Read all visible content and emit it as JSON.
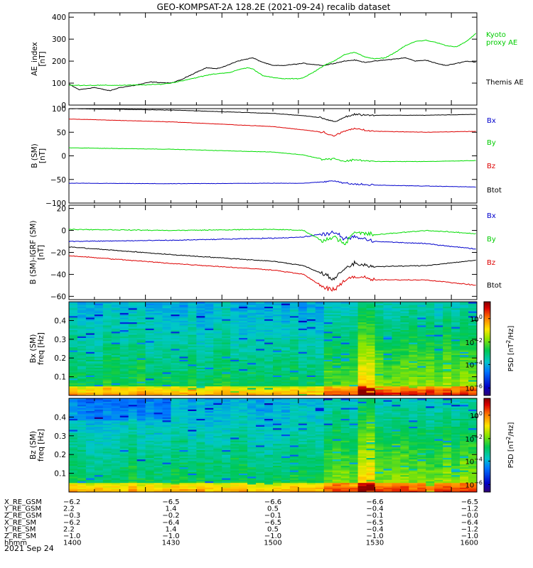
{
  "title": "GEO-KOMPSAT-2A 128.2E (2021-09-24) recalib dataset",
  "footer_date": "2021 Sep 24",
  "chart_data": [
    {
      "id": "ae",
      "type": "line",
      "ylabel": [
        "AE_index",
        "[nT]"
      ],
      "ylim": [
        0,
        420
      ],
      "yticks": [
        0,
        100,
        200,
        300,
        400
      ],
      "series": [
        {
          "name": "Themis AE",
          "color": "#000000",
          "points": [
            [
              0,
              95
            ],
            [
              4,
              70
            ],
            [
              10,
              80
            ],
            [
              16,
              65
            ],
            [
              20,
              80
            ],
            [
              26,
              90
            ],
            [
              32,
              105
            ],
            [
              40,
              100
            ],
            [
              44,
              115
            ],
            [
              50,
              150
            ],
            [
              54,
              170
            ],
            [
              58,
              165
            ],
            [
              62,
              180
            ],
            [
              66,
              200
            ],
            [
              70,
              210
            ],
            [
              72,
              215
            ],
            [
              76,
              195
            ],
            [
              80,
              180
            ],
            [
              84,
              180
            ],
            [
              88,
              185
            ],
            [
              92,
              190
            ],
            [
              96,
              185
            ],
            [
              100,
              180
            ],
            [
              104,
              190
            ],
            [
              108,
              200
            ],
            [
              112,
              205
            ],
            [
              116,
              195
            ],
            [
              120,
              200
            ],
            [
              124,
              205
            ],
            [
              128,
              210
            ],
            [
              132,
              215
            ],
            [
              136,
              200
            ],
            [
              140,
              205
            ],
            [
              144,
              190
            ],
            [
              148,
              180
            ],
            [
              152,
              190
            ],
            [
              156,
              200
            ],
            [
              160,
              195
            ]
          ]
        },
        {
          "name": "Kyoto proxy AE",
          "color": "#00dd00",
          "points": [
            [
              0,
              90
            ],
            [
              10,
              90
            ],
            [
              20,
              90
            ],
            [
              30,
              92
            ],
            [
              36,
              95
            ],
            [
              40,
              100
            ],
            [
              44,
              110
            ],
            [
              48,
              120
            ],
            [
              52,
              130
            ],
            [
              56,
              140
            ],
            [
              60,
              145
            ],
            [
              64,
              150
            ],
            [
              66,
              160
            ],
            [
              70,
              170
            ],
            [
              72,
              165
            ],
            [
              76,
              135
            ],
            [
              80,
              125
            ],
            [
              84,
              120
            ],
            [
              88,
              120
            ],
            [
              90,
              120
            ],
            [
              92,
              125
            ],
            [
              96,
              150
            ],
            [
              100,
              180
            ],
            [
              104,
              200
            ],
            [
              108,
              230
            ],
            [
              112,
              240
            ],
            [
              116,
              220
            ],
            [
              120,
              210
            ],
            [
              124,
              215
            ],
            [
              128,
              240
            ],
            [
              132,
              270
            ],
            [
              136,
              290
            ],
            [
              140,
              295
            ],
            [
              144,
              285
            ],
            [
              148,
              270
            ],
            [
              152,
              265
            ],
            [
              156,
              290
            ],
            [
              160,
              330
            ]
          ]
        }
      ],
      "legend": [
        "Kyoto",
        "proxy AE",
        "Themis AE"
      ]
    },
    {
      "id": "bsm",
      "type": "line",
      "ylabel": [
        "B (SM)",
        "[nT]"
      ],
      "ylim": [
        -100,
        100
      ],
      "yticks": [
        -100,
        -50,
        0,
        50,
        100
      ],
      "series": [
        {
          "name": "Bx",
          "color": "#0000cc",
          "points": [
            [
              0,
              -58
            ],
            [
              40,
              -59
            ],
            [
              80,
              -58
            ],
            [
              92,
              -58
            ],
            [
              100,
              -55
            ],
            [
              104,
              -52
            ],
            [
              108,
              -58
            ],
            [
              112,
              -60
            ],
            [
              120,
              -62
            ],
            [
              140,
              -64
            ],
            [
              160,
              -66
            ]
          ]
        },
        {
          "name": "By",
          "color": "#00dd00",
          "points": [
            [
              0,
              17
            ],
            [
              40,
              14
            ],
            [
              80,
              8
            ],
            [
              92,
              2
            ],
            [
              100,
              -8
            ],
            [
              104,
              -5
            ],
            [
              108,
              -12
            ],
            [
              112,
              -8
            ],
            [
              120,
              -12
            ],
            [
              140,
              -12
            ],
            [
              160,
              -10
            ]
          ]
        },
        {
          "name": "Bz",
          "color": "#dd0000",
          "points": [
            [
              0,
              78
            ],
            [
              40,
              72
            ],
            [
              80,
              62
            ],
            [
              92,
              55
            ],
            [
              100,
              50
            ],
            [
              104,
              42
            ],
            [
              108,
              52
            ],
            [
              112,
              58
            ],
            [
              120,
              52
            ],
            [
              140,
              50
            ],
            [
              160,
              52
            ]
          ]
        },
        {
          "name": "Btot",
          "color": "#000000",
          "points": [
            [
              0,
              100
            ],
            [
              40,
              97
            ],
            [
              80,
              90
            ],
            [
              92,
              85
            ],
            [
              100,
              80
            ],
            [
              104,
              72
            ],
            [
              108,
              82
            ],
            [
              112,
              88
            ],
            [
              120,
              86
            ],
            [
              140,
              86
            ],
            [
              160,
              88
            ]
          ]
        }
      ],
      "legend": [
        "Bx",
        "By",
        "Bz",
        "Btot"
      ]
    },
    {
      "id": "bigrf",
      "type": "line",
      "ylabel": [
        "B (SM)-IGRF (SM)",
        "[nT]"
      ],
      "ylim": [
        -63,
        23
      ],
      "yticks": [
        -60,
        -40,
        -20,
        0,
        20
      ],
      "series": [
        {
          "name": "Bx",
          "color": "#0000cc",
          "points": [
            [
              0,
              -10
            ],
            [
              40,
              -9
            ],
            [
              80,
              -7
            ],
            [
              92,
              -6
            ],
            [
              100,
              -3
            ],
            [
              104,
              -2
            ],
            [
              108,
              -8
            ],
            [
              112,
              -6
            ],
            [
              120,
              -10
            ],
            [
              140,
              -12
            ],
            [
              160,
              -17
            ]
          ]
        },
        {
          "name": "By",
          "color": "#00dd00",
          "points": [
            [
              0,
              1
            ],
            [
              40,
              0
            ],
            [
              80,
              1
            ],
            [
              92,
              0
            ],
            [
              100,
              -10
            ],
            [
              104,
              -5
            ],
            [
              108,
              -12
            ],
            [
              112,
              -2
            ],
            [
              120,
              -4
            ],
            [
              140,
              0
            ],
            [
              160,
              -3
            ]
          ]
        },
        {
          "name": "Bz",
          "color": "#dd0000",
          "points": [
            [
              0,
              -23
            ],
            [
              40,
              -30
            ],
            [
              80,
              -36
            ],
            [
              92,
              -40
            ],
            [
              100,
              -52
            ],
            [
              104,
              -55
            ],
            [
              108,
              -45
            ],
            [
              112,
              -42
            ],
            [
              120,
              -45
            ],
            [
              140,
              -45
            ],
            [
              160,
              -50
            ]
          ]
        },
        {
          "name": "Btot",
          "color": "#000000",
          "points": [
            [
              0,
              -15
            ],
            [
              40,
              -22
            ],
            [
              80,
              -28
            ],
            [
              92,
              -32
            ],
            [
              100,
              -40
            ],
            [
              104,
              -45
            ],
            [
              108,
              -35
            ],
            [
              112,
              -30
            ],
            [
              120,
              -33
            ],
            [
              140,
              -32
            ],
            [
              160,
              -27
            ]
          ]
        }
      ],
      "legend": [
        "Bx",
        "By",
        "Bz",
        "Btot"
      ]
    },
    {
      "id": "spec_bx",
      "type": "heatmap",
      "ylabel": [
        "Bx (SM)",
        "freq [Hz]"
      ],
      "ylim": [
        0,
        0.5
      ],
      "yticks": [
        0.1,
        0.2,
        0.3,
        0.4
      ],
      "colorbar": {
        "label": "PSD [nT",
        "label_sup": "2",
        "label_end": "/Hz]",
        "ticks": [
          "10^0",
          "10^-2",
          "10^-4",
          "10^-6"
        ]
      }
    },
    {
      "id": "spec_bz",
      "type": "heatmap",
      "ylabel": [
        "Bz (SM)",
        "freq [Hz]"
      ],
      "ylim": [
        0,
        0.5
      ],
      "yticks": [
        0.1,
        0.2,
        0.3,
        0.4
      ],
      "colorbar": {
        "label": "PSD [nT",
        "label_sup": "2",
        "label_end": "/Hz]",
        "ticks": [
          "10^0",
          "10^-2",
          "10^-4",
          "10^-6"
        ]
      }
    }
  ],
  "x_axis": {
    "range_min": [
      0,
      160
    ],
    "ticks_min": [
      0,
      40,
      80,
      120,
      160
    ],
    "rows": [
      {
        "label": "X_RE_GSM",
        "values": [
          "-6.2",
          "-6.5",
          "-6.6",
          "-6.6",
          "-6.5"
        ]
      },
      {
        "label": "Y_RE_GSM",
        "values": [
          "2.2",
          "1.4",
          "0.5",
          "-0.4",
          "-1.2"
        ]
      },
      {
        "label": "Z_RE_GSM",
        "values": [
          "-0.3",
          "-0.2",
          "-0.1",
          "-0.1",
          "-0.0"
        ]
      },
      {
        "label": "X_RE_SM",
        "values": [
          "-6.2",
          "-6.4",
          "-6.5",
          "-6.5",
          "-6.4"
        ]
      },
      {
        "label": "Y_RE_SM",
        "values": [
          "2.2",
          "1.4",
          "0.5",
          "-0.4",
          "-1.2"
        ]
      },
      {
        "label": "Z_RE_SM",
        "values": [
          "-1.0",
          "-1.0",
          "-1.0",
          "-1.0",
          "-1.0"
        ]
      },
      {
        "label": "hhmm",
        "values": [
          "1400",
          "1430",
          "1500",
          "1530",
          "1600"
        ]
      }
    ]
  }
}
